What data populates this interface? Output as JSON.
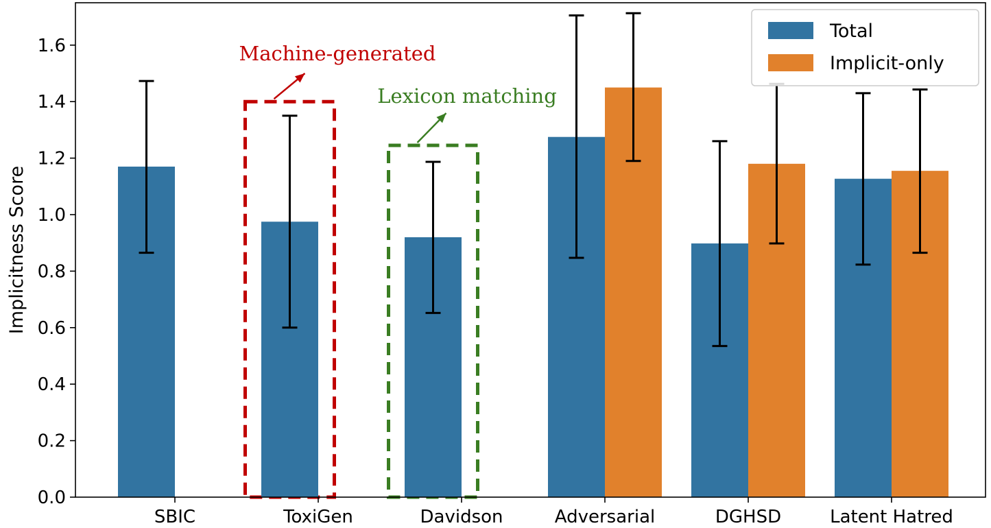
{
  "chart_data": {
    "type": "bar",
    "title": "",
    "xlabel": "",
    "ylabel": "Implicitness Score",
    "ylim": [
      0,
      1.75
    ],
    "yticks": [
      0.0,
      0.2,
      0.4,
      0.6,
      0.8,
      1.0,
      1.2,
      1.4,
      1.6
    ],
    "ytick_labels": [
      "0.0",
      "0.2",
      "0.4",
      "0.6",
      "0.8",
      "1.0",
      "1.2",
      "1.4",
      "1.6"
    ],
    "grid": false,
    "legend_position": "top-right",
    "categories": [
      "SBIC",
      "ToxiGen",
      "Davidson",
      "Adversarial",
      "DGHSD",
      "Latent Hatred"
    ],
    "series": [
      {
        "name": "Total",
        "color": "#3274a1",
        "values": [
          1.17,
          0.975,
          0.92,
          1.275,
          0.898,
          1.127
        ],
        "err_low": [
          0.865,
          0.6,
          0.652,
          0.847,
          0.535,
          0.823
        ],
        "err_high": [
          1.473,
          1.35,
          1.187,
          1.705,
          1.26,
          1.43
        ]
      },
      {
        "name": "Implicit-only",
        "color": "#e1812c",
        "values": [
          null,
          null,
          null,
          1.45,
          1.18,
          1.155
        ],
        "err_low": [
          null,
          null,
          null,
          1.19,
          0.898,
          0.865
        ],
        "err_high": [
          null,
          null,
          null,
          1.713,
          1.463,
          1.443
        ]
      }
    ],
    "annotations": [
      {
        "text": "Machine-generated",
        "color": "#c00000",
        "target_category": "ToxiGen",
        "box_top": 1.4
      },
      {
        "text": "Lexicon matching",
        "color": "#3a7d22",
        "target_category": "Davidson",
        "box_top": 1.245
      }
    ]
  }
}
